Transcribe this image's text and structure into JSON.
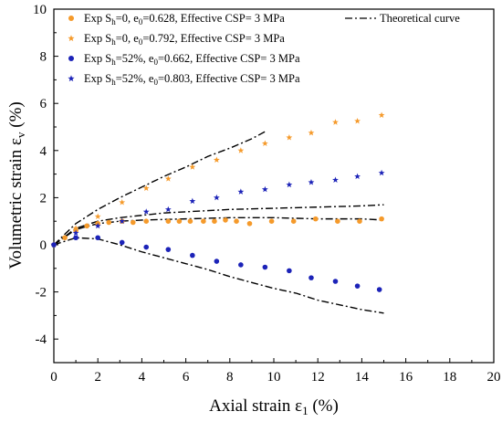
{
  "chart_data": {
    "type": "scatter",
    "xlabel": "Axial strain ε1 (%)",
    "ylabel": "Volumetric strain εv (%)",
    "xlim": [
      0,
      20
    ],
    "ylim": [
      -5,
      10
    ],
    "x_ticks": [
      0,
      2,
      4,
      6,
      8,
      10,
      12,
      14,
      16,
      18,
      20
    ],
    "y_ticks": [
      -4,
      -2,
      0,
      2,
      4,
      6,
      8,
      10
    ],
    "grid": false,
    "legend_placement": "top",
    "series": [
      {
        "name": "Exp Sh=0, e0=0.628, Effective CSP= 3 MPa",
        "marker": "circle",
        "color": "#F59A2B",
        "points": [
          [
            0,
            0
          ],
          [
            0.5,
            0.3
          ],
          [
            1,
            0.6
          ],
          [
            1.5,
            0.8
          ],
          [
            2,
            0.9
          ],
          [
            2.5,
            0.95
          ],
          [
            3.1,
            1.0
          ],
          [
            3.6,
            0.95
          ],
          [
            4.2,
            1.0
          ],
          [
            5.2,
            1.0
          ],
          [
            5.7,
            1.0
          ],
          [
            6.2,
            1.0
          ],
          [
            6.8,
            1.0
          ],
          [
            7.3,
            1.0
          ],
          [
            7.8,
            1.05
          ],
          [
            8.3,
            1.0
          ],
          [
            8.9,
            0.9
          ],
          [
            9.9,
            1.0
          ],
          [
            10.9,
            1.0
          ],
          [
            11.9,
            1.1
          ],
          [
            12.9,
            1.0
          ],
          [
            13.9,
            1.0
          ],
          [
            14.9,
            1.1
          ]
        ]
      },
      {
        "name": "Exp Sh=0, e0=0.792, Effective CSP= 3 MPa",
        "marker": "star",
        "color": "#F59A2B",
        "points": [
          [
            0,
            0
          ],
          [
            1,
            0.7
          ],
          [
            2,
            1.2
          ],
          [
            3.1,
            1.8
          ],
          [
            4.2,
            2.4
          ],
          [
            5.2,
            2.8
          ],
          [
            6.3,
            3.3
          ],
          [
            7.4,
            3.6
          ],
          [
            8.5,
            4.0
          ],
          [
            9.6,
            4.3
          ],
          [
            10.7,
            4.55
          ],
          [
            11.7,
            4.75
          ],
          [
            12.8,
            5.2
          ],
          [
            13.8,
            5.25
          ],
          [
            14.9,
            5.5
          ]
        ]
      },
      {
        "name": "Exp Sh=52%, e0=0.662, Effective CSP= 3 MPa",
        "marker": "circle",
        "color": "#1C23B8",
        "points": [
          [
            0,
            0
          ],
          [
            1,
            0.3
          ],
          [
            2,
            0.3
          ],
          [
            3.1,
            0.1
          ],
          [
            4.2,
            -0.1
          ],
          [
            5.2,
            -0.2
          ],
          [
            6.3,
            -0.45
          ],
          [
            7.4,
            -0.7
          ],
          [
            8.5,
            -0.85
          ],
          [
            9.6,
            -0.95
          ],
          [
            10.7,
            -1.1
          ],
          [
            11.7,
            -1.4
          ],
          [
            12.8,
            -1.55
          ],
          [
            13.8,
            -1.75
          ],
          [
            14.8,
            -1.9
          ]
        ]
      },
      {
        "name": "Exp Sh=52%, e0=0.803, Effective CSP= 3 MPa",
        "marker": "star",
        "color": "#1C23B8",
        "points": [
          [
            0,
            0
          ],
          [
            1,
            0.5
          ],
          [
            2,
            0.8
          ],
          [
            3.1,
            1.0
          ],
          [
            4.2,
            1.4
          ],
          [
            5.2,
            1.5
          ],
          [
            6.3,
            1.85
          ],
          [
            7.4,
            2.0
          ],
          [
            8.5,
            2.25
          ],
          [
            9.6,
            2.35
          ],
          [
            10.7,
            2.55
          ],
          [
            11.7,
            2.65
          ],
          [
            12.8,
            2.75
          ],
          [
            13.8,
            2.9
          ],
          [
            14.9,
            3.05
          ]
        ]
      },
      {
        "name": "Theoretical curve",
        "type": "line",
        "dash": "dash-dot",
        "color": "#000000",
        "curves": [
          [
            [
              0,
              0
            ],
            [
              0.5,
              0.45
            ],
            [
              1,
              0.9
            ],
            [
              2,
              1.5
            ],
            [
              3,
              2.0
            ],
            [
              4,
              2.45
            ],
            [
              5,
              2.9
            ],
            [
              6,
              3.3
            ],
            [
              7,
              3.75
            ],
            [
              8,
              4.1
            ],
            [
              9,
              4.5
            ],
            [
              9.7,
              4.85
            ]
          ],
          [
            [
              0,
              0
            ],
            [
              1,
              0.7
            ],
            [
              2,
              1.0
            ],
            [
              3,
              1.15
            ],
            [
              4,
              1.25
            ],
            [
              5,
              1.35
            ],
            [
              6,
              1.4
            ],
            [
              8,
              1.5
            ],
            [
              10,
              1.55
            ],
            [
              12,
              1.6
            ],
            [
              14,
              1.65
            ],
            [
              15,
              1.7
            ]
          ],
          [
            [
              0,
              0
            ],
            [
              1,
              0.65
            ],
            [
              2,
              0.9
            ],
            [
              3,
              1.0
            ],
            [
              4,
              1.05
            ],
            [
              6,
              1.1
            ],
            [
              8,
              1.15
            ],
            [
              10,
              1.15
            ],
            [
              12,
              1.1
            ],
            [
              14,
              1.1
            ],
            [
              15,
              1.05
            ]
          ],
          [
            [
              0,
              0
            ],
            [
              1,
              0.3
            ],
            [
              2,
              0.25
            ],
            [
              3,
              0.0
            ],
            [
              4,
              -0.3
            ],
            [
              5,
              -0.55
            ],
            [
              6,
              -0.8
            ],
            [
              7,
              -1.05
            ],
            [
              8,
              -1.35
            ],
            [
              9,
              -1.6
            ],
            [
              10,
              -1.85
            ],
            [
              11,
              -2.05
            ],
            [
              12,
              -2.35
            ],
            [
              13,
              -2.55
            ],
            [
              14,
              -2.75
            ],
            [
              15,
              -2.9
            ]
          ]
        ]
      }
    ],
    "legend": {
      "exp1": {
        "pre": "Exp S",
        "s1": "h",
        "mid": "=0, e",
        "s2": "0",
        "post": "=0.628, Effective CSP= 3 MPa"
      },
      "exp2": {
        "pre": "Exp S",
        "s1": "h",
        "mid": "=0, e",
        "s2": "0",
        "post": "=0.792, Effective CSP= 3 MPa"
      },
      "exp3": {
        "pre": "Exp S",
        "s1": "h",
        "mid": "=52%, e",
        "s2": "0",
        "post": "=0.662, Effective CSP= 3 MPa"
      },
      "exp4": {
        "pre": "Exp S",
        "s1": "h",
        "mid": "=52%, e",
        "s2": "0",
        "post": "=0.803, Effective CSP= 3 MPa"
      },
      "theory": "Theoretical curve"
    },
    "axis_text": {
      "x_main": "Axial strain ε",
      "x_sub": "1",
      "x_unit": " (%)",
      "y_main": "Volumetric strain ε",
      "y_sub": "v",
      "y_unit": " (%)"
    }
  }
}
